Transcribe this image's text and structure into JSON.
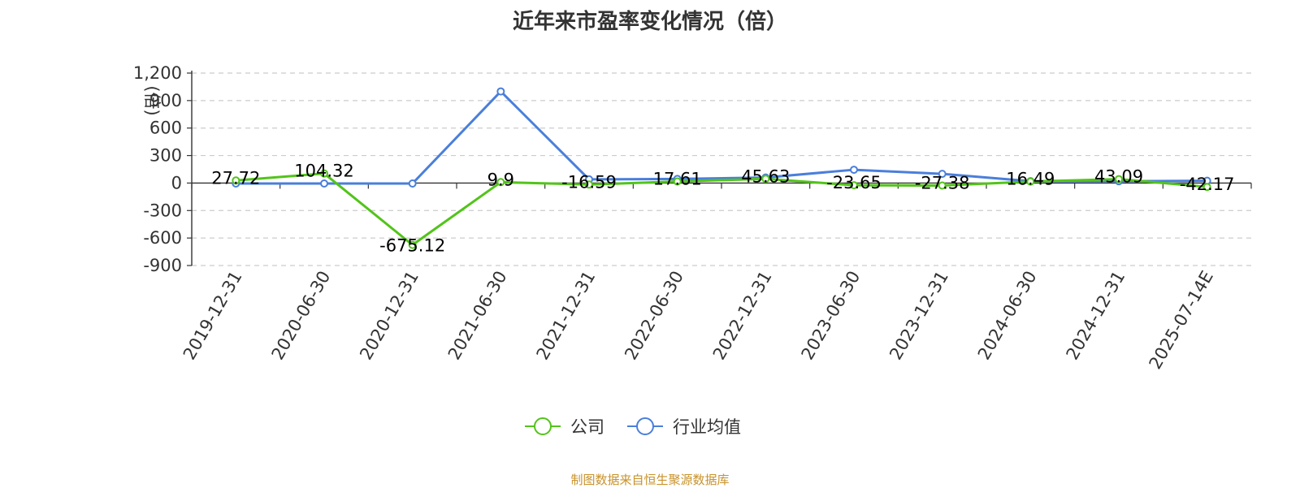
{
  "source_note": "制图数据来自恒生聚源数据库",
  "colors": {
    "company": "#52c41a",
    "industry": "#4a7fdb",
    "unit_label": "#e02020",
    "source_note": "#c8922a",
    "grid": "#cccccc"
  },
  "chart_data": {
    "type": "line",
    "title": "近年来市盈率变化情况（倍）",
    "ylabel": "(倍)",
    "xlabel": "",
    "categories": [
      "2019-12-31",
      "2020-06-30",
      "2020-12-31",
      "2021-06-30",
      "2021-12-31",
      "2022-06-30",
      "2022-12-31",
      "2023-06-30",
      "2023-12-31",
      "2024-06-30",
      "2024-12-31",
      "2025-07-14E"
    ],
    "ylim": [
      -900,
      1200
    ],
    "yticks": [
      1200,
      900,
      600,
      300,
      0,
      -300,
      -600,
      -900
    ],
    "ytick_labels": [
      "1,200",
      "900",
      "600",
      "300",
      "0",
      "-300",
      "-600",
      "-900"
    ],
    "grid": true,
    "grid_style": "dashed horizontal",
    "legend_position": "bottom-center",
    "series": [
      {
        "name": "公司",
        "color": "#52c41a",
        "values": [
          27.72,
          104.32,
          -675.12,
          9.9,
          -16.59,
          17.61,
          45.63,
          -23.65,
          -27.38,
          16.49,
          43.09,
          -42.17
        ],
        "labels": [
          "27.72",
          "104.32",
          "-675.12",
          "9.9",
          "-16.59",
          "17.61",
          "45.63",
          "-23.65",
          "-27.38",
          "16.49",
          "43.09",
          "-42.17"
        ]
      },
      {
        "name": "行业均值",
        "color": "#4a7fdb",
        "values": [
          -5,
          -5,
          -5,
          1000,
          40,
          45,
          60,
          145,
          100,
          20,
          20,
          25
        ]
      }
    ]
  }
}
